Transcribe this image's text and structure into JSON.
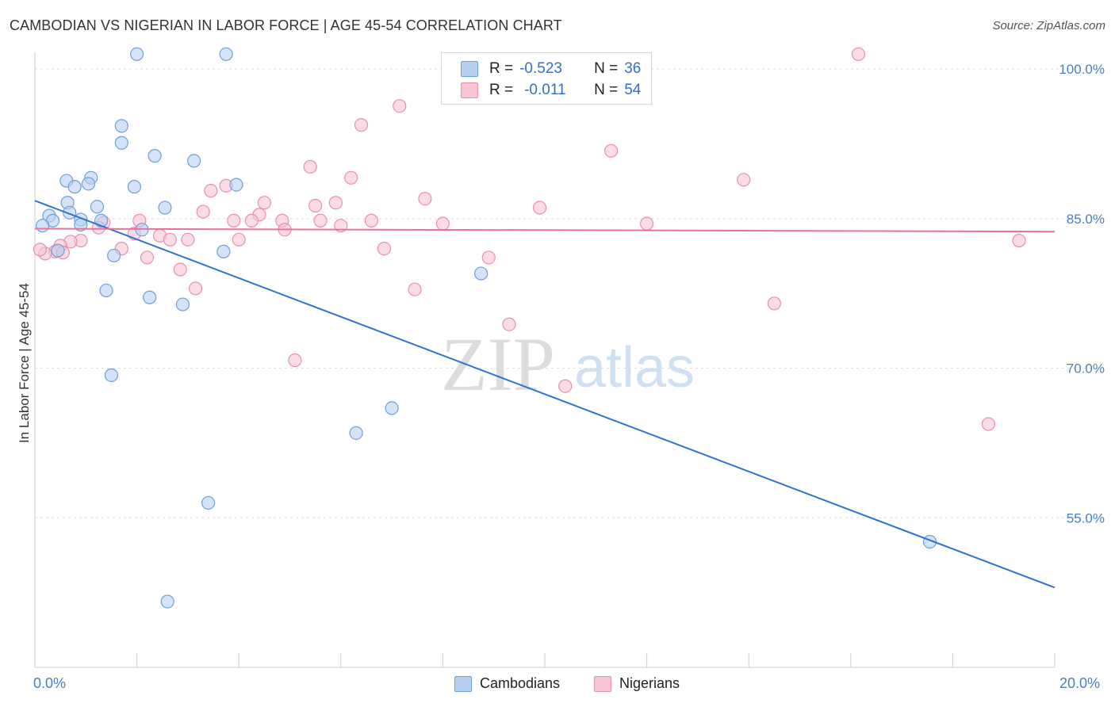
{
  "title": "CAMBODIAN VS NIGERIAN IN LABOR FORCE | AGE 45-54 CORRELATION CHART",
  "source": "Source: ZipAtlas.com",
  "watermark": {
    "zip": "ZIP",
    "atlas": "atlas"
  },
  "legend": {
    "r_label": "R =",
    "n_label": "N =",
    "rows": [
      {
        "r": "-0.523",
        "n": "36"
      },
      {
        "r": "-0.011",
        "n": "54"
      }
    ]
  },
  "bottom_legend": [
    "Cambodians",
    "Nigerians"
  ],
  "x_axis": {
    "min_label": "0.0%",
    "max_label": "20.0%"
  },
  "colors": {
    "blue_fill": "#b7d0f2",
    "blue_stroke": "#6f9fd8",
    "blue_line": "#2f72d2",
    "pink_fill": "#f8c4d4",
    "pink_stroke": "#e98fab",
    "pink_line": "#e4729a",
    "tick_text": "#4a7fc1",
    "grid": "#dddddd"
  },
  "chart_data": {
    "type": "scatter",
    "title": "CAMBODIAN VS NIGERIAN IN LABOR FORCE | AGE 45-54 CORRELATION CHART",
    "xlabel": "",
    "ylabel": "In Labor Force | Age 45-54",
    "xlim": [
      0,
      20
    ],
    "ylim": [
      40,
      102
    ],
    "x_ticks": [
      "0.0%",
      "20.0%"
    ],
    "y_ticks": [
      {
        "value": 100,
        "label": "100.0%"
      },
      {
        "value": 85,
        "label": "85.0%"
      },
      {
        "value": 70,
        "label": "70.0%"
      },
      {
        "value": 55,
        "label": "55.0%"
      }
    ],
    "series": [
      {
        "name": "Cambodians",
        "r": -0.523,
        "n": 36,
        "trend": {
          "x": [
            0,
            20
          ],
          "y": [
            86.8,
            48.0
          ]
        },
        "points": [
          [
            2.0,
            101.5
          ],
          [
            3.75,
            101.5
          ],
          [
            1.7,
            94.3
          ],
          [
            1.7,
            92.6
          ],
          [
            2.35,
            91.3
          ],
          [
            3.12,
            90.8
          ],
          [
            1.1,
            89.1
          ],
          [
            0.62,
            88.8
          ],
          [
            1.05,
            88.5
          ],
          [
            0.78,
            88.2
          ],
          [
            1.95,
            88.2
          ],
          [
            3.95,
            88.4
          ],
          [
            0.64,
            86.6
          ],
          [
            1.22,
            86.2
          ],
          [
            2.55,
            86.1
          ],
          [
            0.28,
            85.3
          ],
          [
            0.68,
            85.6
          ],
          [
            0.35,
            84.8
          ],
          [
            0.9,
            84.9
          ],
          [
            1.3,
            84.8
          ],
          [
            0.15,
            84.3
          ],
          [
            0.9,
            84.4
          ],
          [
            3.7,
            81.7
          ],
          [
            1.55,
            81.3
          ],
          [
            8.75,
            79.5
          ],
          [
            1.4,
            77.8
          ],
          [
            2.25,
            77.1
          ],
          [
            2.9,
            76.4
          ],
          [
            1.5,
            69.3
          ],
          [
            7.0,
            66.0
          ],
          [
            6.3,
            63.5
          ],
          [
            3.4,
            56.5
          ],
          [
            17.55,
            52.6
          ],
          [
            2.6,
            46.6
          ],
          [
            0.45,
            81.8
          ],
          [
            2.1,
            83.9
          ]
        ]
      },
      {
        "name": "Nigerians",
        "r": -0.011,
        "n": 54,
        "trend": {
          "x": [
            0,
            20
          ],
          "y": [
            84.0,
            83.7
          ]
        },
        "points": [
          [
            16.15,
            101.5
          ],
          [
            11.05,
            97.2
          ],
          [
            7.15,
            96.3
          ],
          [
            6.4,
            94.4
          ],
          [
            11.3,
            91.8
          ],
          [
            5.4,
            90.2
          ],
          [
            6.2,
            89.1
          ],
          [
            13.9,
            88.9
          ],
          [
            3.75,
            88.3
          ],
          [
            3.45,
            87.8
          ],
          [
            7.65,
            87.0
          ],
          [
            4.5,
            86.6
          ],
          [
            5.9,
            86.6
          ],
          [
            5.5,
            86.3
          ],
          [
            9.9,
            86.1
          ],
          [
            3.3,
            85.7
          ],
          [
            4.4,
            85.4
          ],
          [
            2.05,
            84.8
          ],
          [
            3.9,
            84.8
          ],
          [
            4.25,
            84.8
          ],
          [
            4.85,
            84.8
          ],
          [
            5.6,
            84.8
          ],
          [
            6.6,
            84.8
          ],
          [
            1.35,
            84.6
          ],
          [
            8.0,
            84.5
          ],
          [
            12.0,
            84.5
          ],
          [
            6.0,
            84.3
          ],
          [
            1.25,
            84.1
          ],
          [
            4.9,
            83.9
          ],
          [
            1.95,
            83.5
          ],
          [
            2.45,
            83.3
          ],
          [
            2.65,
            82.9
          ],
          [
            3.0,
            82.9
          ],
          [
            4.0,
            82.9
          ],
          [
            0.9,
            82.8
          ],
          [
            0.7,
            82.7
          ],
          [
            0.5,
            82.3
          ],
          [
            1.7,
            82.0
          ],
          [
            6.85,
            82.0
          ],
          [
            0.4,
            81.7
          ],
          [
            0.2,
            81.5
          ],
          [
            2.2,
            81.1
          ],
          [
            8.9,
            81.1
          ],
          [
            2.85,
            79.9
          ],
          [
            19.3,
            82.8
          ],
          [
            3.15,
            78.0
          ],
          [
            7.45,
            77.9
          ],
          [
            14.5,
            76.5
          ],
          [
            9.3,
            74.4
          ],
          [
            5.1,
            70.8
          ],
          [
            10.4,
            68.2
          ],
          [
            18.7,
            64.4
          ],
          [
            0.1,
            81.9
          ],
          [
            0.55,
            81.6
          ]
        ]
      }
    ]
  }
}
